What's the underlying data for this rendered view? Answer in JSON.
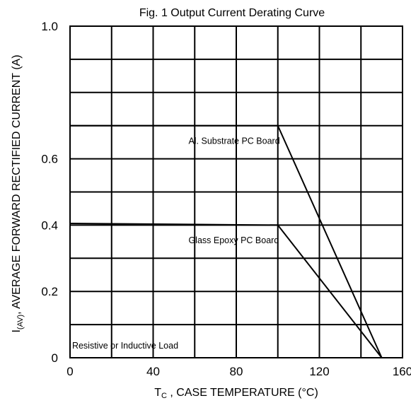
{
  "chart_data": {
    "type": "line",
    "title": "Fig. 1  Output Current Derating Curve",
    "ylabel_prefix": "I",
    "ylabel_sub": "(AV)",
    "ylabel_rest": ", AVERAGE FORWARD RECTIFIED CURRENT (A)",
    "xlabel_prefix": "T",
    "xlabel_sub": "C",
    "xlabel_rest": " , CASE TEMPERATURE (°C)",
    "xlim": [
      0,
      160
    ],
    "ylim": [
      0,
      1.0
    ],
    "grid": true,
    "x_ticks": [
      {
        "value": 0,
        "label": "0"
      },
      {
        "value": 40,
        "label": "40"
      },
      {
        "value": 80,
        "label": "80"
      },
      {
        "value": 120,
        "label": "120"
      },
      {
        "value": 160,
        "label": "160"
      }
    ],
    "x_minor_ticks": [
      20,
      60,
      100,
      140
    ],
    "y_ticks": [
      {
        "value": 0,
        "label": "0"
      },
      {
        "value": 0.2,
        "label": "0.2"
      },
      {
        "value": 0.4,
        "label": "0.4"
      },
      {
        "value": 0.6,
        "label": "0.6"
      },
      {
        "value": 1.0,
        "label": "1.0"
      }
    ],
    "y_grid": [
      0.1,
      0.2,
      0.3,
      0.4,
      0.5,
      0.6,
      0.7,
      0.8,
      0.9
    ],
    "series": [
      {
        "name": "Al. Substrate PC Board",
        "x": [
          0,
          100,
          150
        ],
        "y": [
          0.7,
          0.7,
          0.0
        ]
      },
      {
        "name": "Glass Epoxy PC Board",
        "x": [
          0,
          100,
          150
        ],
        "y": [
          0.405,
          0.4,
          0.0
        ]
      }
    ],
    "annotations": [
      {
        "text": "Al. Substrate PC Board",
        "x": 57,
        "y": 0.645
      },
      {
        "text": "Glass Epoxy PC Board",
        "x": 57,
        "y": 0.345
      },
      {
        "text": "Resistive or Inductive Load",
        "x": 1,
        "y": 0.028
      }
    ]
  }
}
